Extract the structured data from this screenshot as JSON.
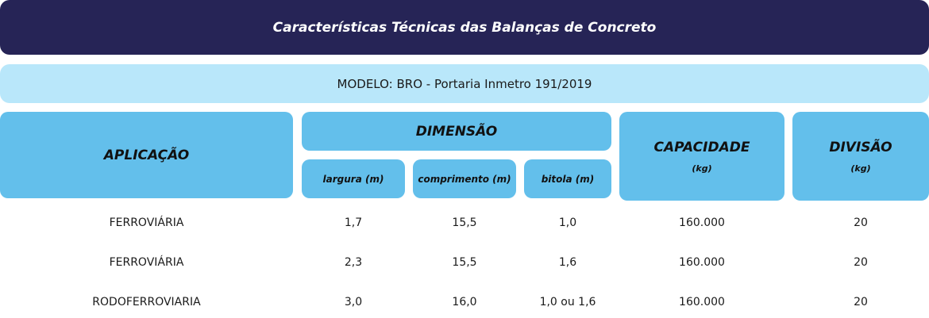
{
  "title": "Características Técnicas das Balanças de Concreto",
  "model": "MODELO: BRO - Portaria Inmetro 191/2019",
  "headers": {
    "aplicacao": "APLICAÇÃO",
    "dimensao": "DIMENSÃO",
    "largura": "largura (m)",
    "comprimento": "comprimento (m)",
    "bitola": "bitola (m)",
    "capacidade": "CAPACIDADE",
    "capacidade_unit": "(kg)",
    "divisao": "DIVISÃO",
    "divisao_unit": "(kg)"
  },
  "rows": [
    {
      "aplicacao": "FERROVIÁRIA",
      "largura": "1,7",
      "comprimento": "15,5",
      "bitola": "1,0",
      "capacidade": "160.000",
      "divisao": "20"
    },
    {
      "aplicacao": "FERROVIÁRIA",
      "largura": "2,3",
      "comprimento": "15,5",
      "bitola": "1,6",
      "capacidade": "160.000",
      "divisao": "20"
    },
    {
      "aplicacao": "RODOFERROVIARIA",
      "largura": "3,0",
      "comprimento": "16,0",
      "bitola": "1,0 ou 1,6",
      "capacidade": "160.000",
      "divisao": "20"
    }
  ],
  "colors": {
    "title_bg": "#262456",
    "model_bg": "#b9e7fa",
    "header_bg": "#63bfeb"
  }
}
